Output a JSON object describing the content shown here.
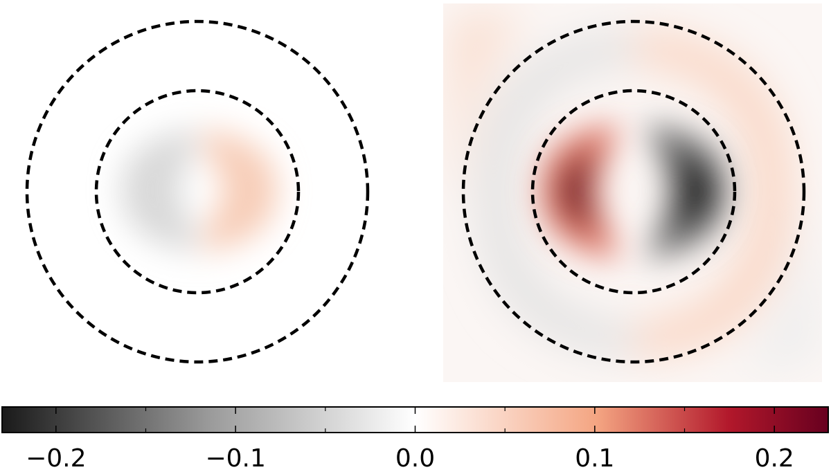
{
  "chart_data": [
    {
      "type": "heatmap",
      "panel": "left",
      "field": "antisymmetric-lobes",
      "peak_value": 0.035,
      "min_value": -0.035,
      "dashed_circles": [
        "inner",
        "outer"
      ]
    },
    {
      "type": "heatmap",
      "panel": "right",
      "field": "antisymmetric-lobes",
      "peak_value": 0.23,
      "min_value": -0.23,
      "outer_ring_value": 0.04,
      "dashed_circles": [
        "inner",
        "outer"
      ]
    }
  ],
  "colorbar": {
    "range": [
      -0.23,
      0.23
    ],
    "ticks": [
      {
        "value": -0.2,
        "label": "−0.2"
      },
      {
        "value": -0.1,
        "label": "−0.1"
      },
      {
        "value": 0.0,
        "label": "0.0"
      },
      {
        "value": 0.1,
        "label": "0.1"
      },
      {
        "value": 0.2,
        "label": "0.2"
      }
    ],
    "minor_ticks": [
      -0.15,
      -0.05,
      0.05,
      0.15
    ],
    "colors": {
      "negative_end": "#1a1a1a",
      "mid_negative": "#bdbdbd",
      "zero": "#ffffff",
      "mid_positive": "#f4a582",
      "positive_end": "#67001f"
    }
  }
}
